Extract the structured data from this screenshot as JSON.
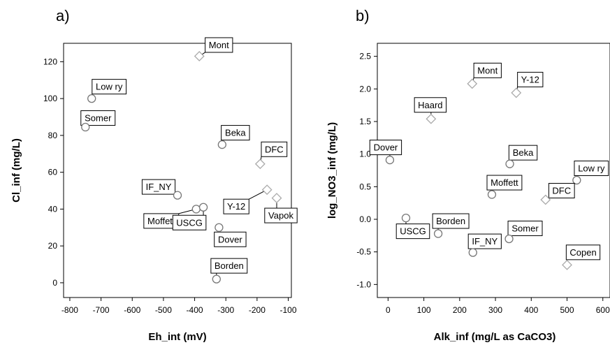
{
  "chart_data": [
    {
      "type": "scatter",
      "panel_label": "a)",
      "xlabel": "Eh_int (mV)",
      "ylabel": "Cl_inf (mg/L)",
      "xlim": [
        -820,
        -90
      ],
      "ylim": [
        -8,
        130
      ],
      "x_ticks": [
        -800,
        -700,
        -600,
        -500,
        -400,
        -300,
        -200,
        -100
      ],
      "y_ticks": [
        0,
        20,
        40,
        60,
        80,
        100,
        120
      ],
      "marker_colors": {
        "circle": "#777777",
        "diamond": "#aaaaaa"
      },
      "points": [
        {
          "label": "Mont",
          "x": -385,
          "y": 123,
          "marker": "diamond"
        },
        {
          "label": "Low ry",
          "x": -730,
          "y": 100,
          "marker": "circle"
        },
        {
          "label": "Somer",
          "x": -750,
          "y": 84.5,
          "marker": "circle"
        },
        {
          "label": "Beka",
          "x": -312,
          "y": 75,
          "marker": "circle"
        },
        {
          "label": "DFC",
          "x": -190,
          "y": 64.5,
          "marker": "diamond"
        },
        {
          "label": "IF_NY",
          "x": -455,
          "y": 47.5,
          "marker": "circle"
        },
        {
          "label": "Y-12",
          "x": -168,
          "y": 50.5,
          "marker": "diamond"
        },
        {
          "label": "Vapok",
          "x": -137,
          "y": 46,
          "marker": "diamond"
        },
        {
          "label": "Moffett",
          "x": -395,
          "y": 40,
          "marker": "circle"
        },
        {
          "label": "USCG",
          "x": -372,
          "y": 41,
          "marker": "circle"
        },
        {
          "label": "Dover",
          "x": -322,
          "y": 30,
          "marker": "circle"
        },
        {
          "label": "Borden",
          "x": -330,
          "y": 2,
          "marker": "circle"
        }
      ]
    },
    {
      "type": "scatter",
      "panel_label": "b)",
      "xlabel": "Alk_inf (mg/L as CaCO3)",
      "ylabel": "log_NO3_inf (mg/L)",
      "xlim": [
        -30,
        620
      ],
      "ylim": [
        -1.2,
        2.7
      ],
      "x_ticks": [
        0,
        100,
        200,
        300,
        400,
        500,
        600
      ],
      "y_ticks": [
        -1.0,
        -0.5,
        0.0,
        0.5,
        1.0,
        1.5,
        2.0,
        2.5
      ],
      "y_tick_labels": [
        "-1.0",
        "-0.5",
        "0.0",
        "0.5",
        "1.0",
        "1.5",
        "2.0",
        "2.5"
      ],
      "marker_colors": {
        "circle": "#777777",
        "diamond": "#aaaaaa"
      },
      "points": [
        {
          "label": "Mont",
          "x": 235,
          "y": 2.08,
          "marker": "diamond"
        },
        {
          "label": "Y-12",
          "x": 358,
          "y": 1.94,
          "marker": "diamond"
        },
        {
          "label": "Haard",
          "x": 120,
          "y": 1.54,
          "marker": "diamond"
        },
        {
          "label": "Dover",
          "x": 5,
          "y": 0.91,
          "marker": "circle"
        },
        {
          "label": "Beka",
          "x": 340,
          "y": 0.85,
          "marker": "circle"
        },
        {
          "label": "Low ry",
          "x": 527,
          "y": 0.6,
          "marker": "circle"
        },
        {
          "label": "Moffett",
          "x": 290,
          "y": 0.38,
          "marker": "circle"
        },
        {
          "label": "DFC",
          "x": 440,
          "y": 0.3,
          "marker": "diamond"
        },
        {
          "label": "USCG",
          "x": 50,
          "y": 0.02,
          "marker": "circle"
        },
        {
          "label": "Borden",
          "x": 140,
          "y": -0.22,
          "marker": "circle"
        },
        {
          "label": "Somer",
          "x": 338,
          "y": -0.3,
          "marker": "circle"
        },
        {
          "label": "IF_NY",
          "x": 237,
          "y": -0.51,
          "marker": "circle"
        },
        {
          "label": "Copen",
          "x": 500,
          "y": -0.7,
          "marker": "diamond"
        }
      ]
    }
  ]
}
